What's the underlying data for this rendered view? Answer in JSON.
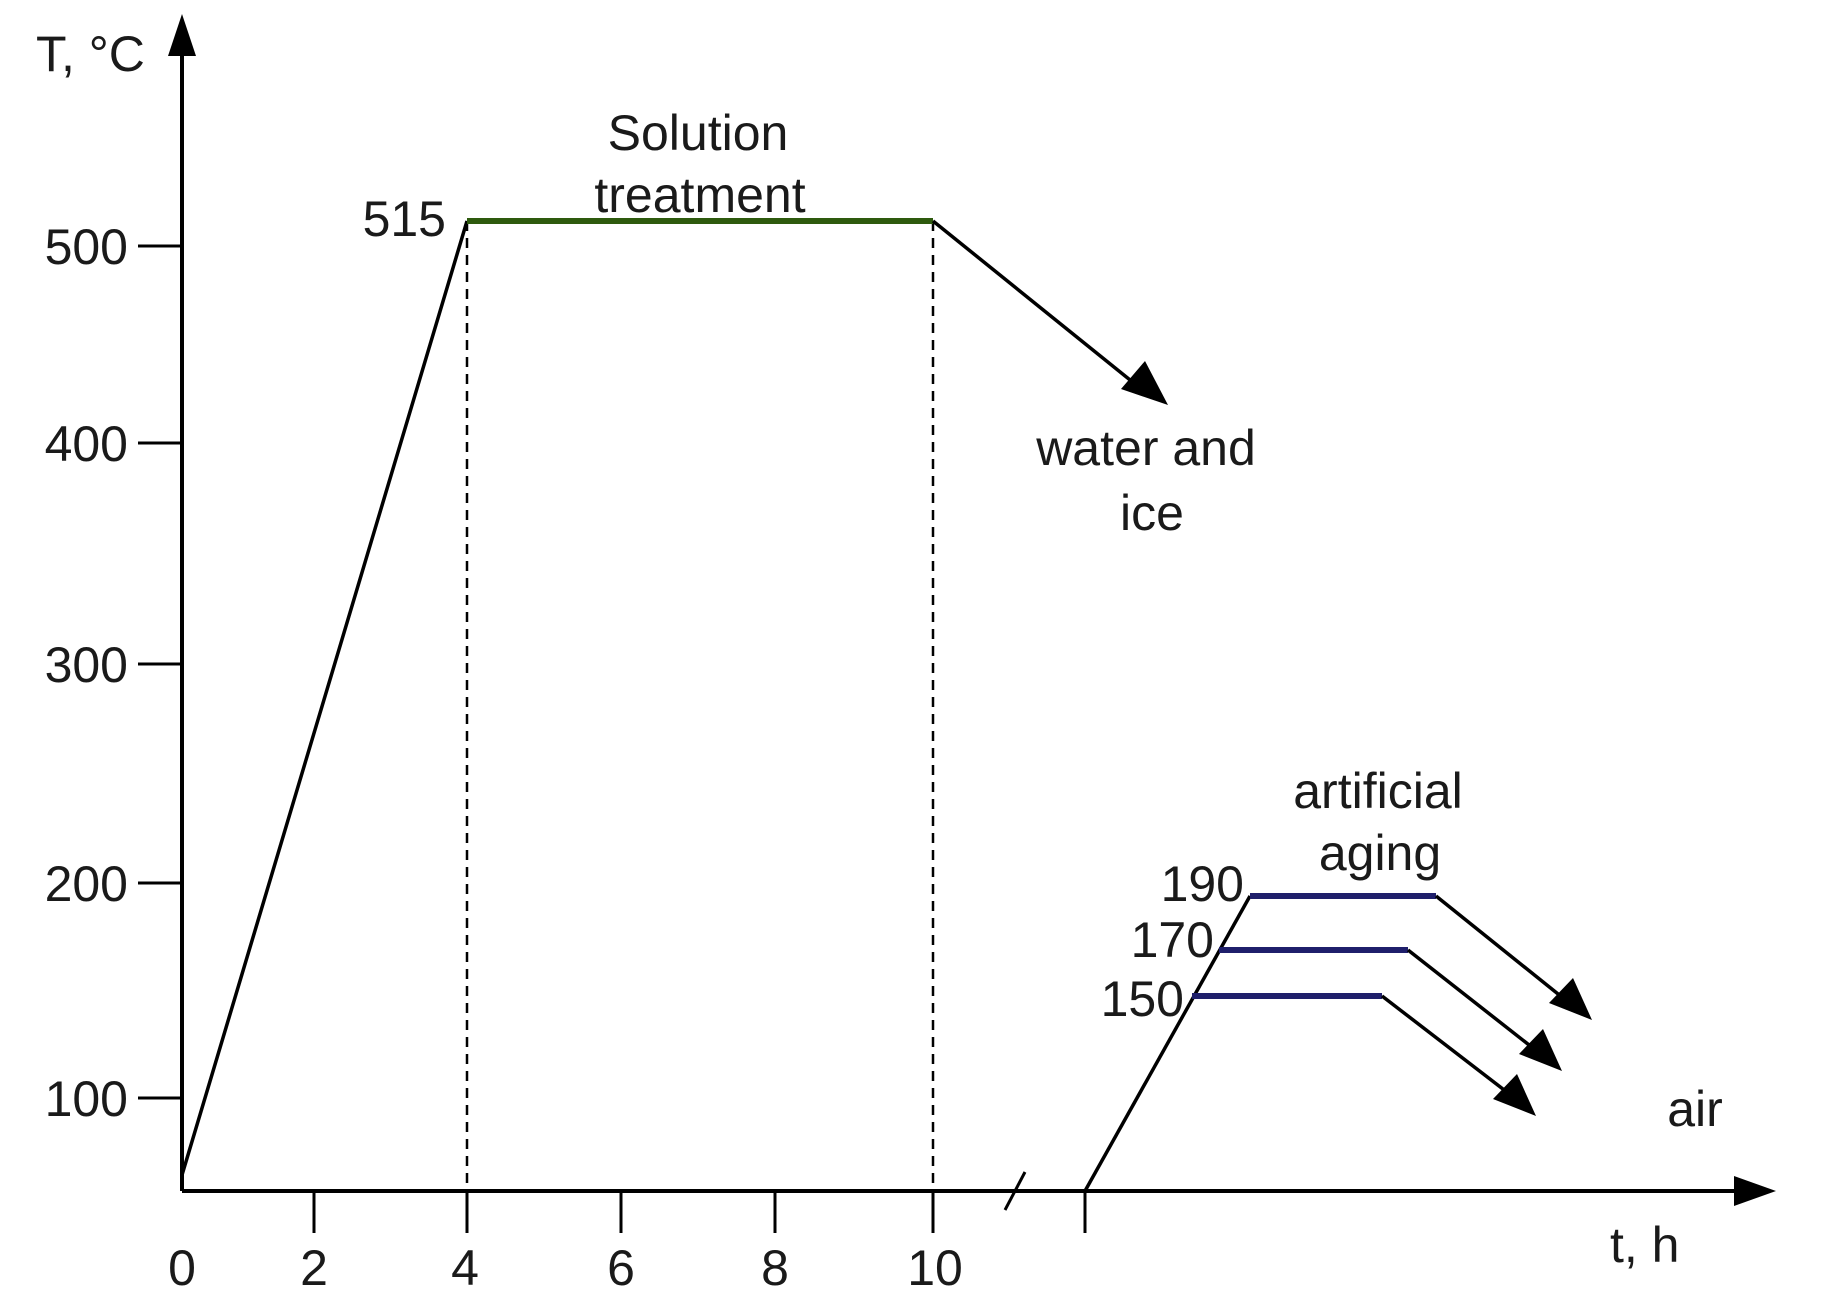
{
  "diagram": {
    "axes": {
      "y_label": "T, °C",
      "x_label": "t, h",
      "y_ticks": [
        "100",
        "200",
        "300",
        "400",
        "500"
      ],
      "x_ticks": [
        "0",
        "2",
        "4",
        "6",
        "8",
        "10"
      ]
    },
    "solution": {
      "label_line1": "Solution",
      "label_line2": "treatment",
      "temperature": "515",
      "hold_color": "#2e5a0e"
    },
    "quench": {
      "label_line1": "water and",
      "label_line2": "ice"
    },
    "aging": {
      "label_line1": "artificial",
      "label_line2": "aging",
      "temperatures": [
        "190",
        "170",
        "150"
      ],
      "hold_color": "#1f1f6b",
      "cooling_label": "air"
    }
  }
}
